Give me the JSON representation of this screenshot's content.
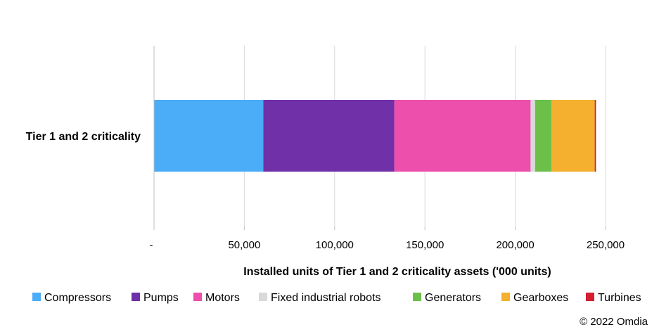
{
  "chart_data": {
    "type": "bar",
    "orientation": "horizontal",
    "stacked": true,
    "categories": [
      "Tier 1 and 2 criticality"
    ],
    "series": [
      {
        "name": "Compressors",
        "values": [
          60500
        ],
        "color": "#4BACF7"
      },
      {
        "name": "Pumps",
        "values": [
          72500
        ],
        "color": "#7030A8"
      },
      {
        "name": "Motors",
        "values": [
          75500
        ],
        "color": "#EC4FAC"
      },
      {
        "name": "Fixed industrial robots",
        "values": [
          2500
        ],
        "color": "#D9D9D9"
      },
      {
        "name": "Generators",
        "values": [
          9000
        ],
        "color": "#6CC04A"
      },
      {
        "name": "Gearboxes",
        "values": [
          24000
        ],
        "color": "#F4B02E"
      },
      {
        "name": "Turbines",
        "values": [
          700
        ],
        "color": "#D32030"
      }
    ],
    "xlabel": "Installed units of Tier 1 and 2 criticality assets ('000 units)",
    "xlim": [
      0,
      250000
    ],
    "xticks": [
      0,
      50000,
      100000,
      150000,
      200000,
      250000
    ],
    "xtick_labels": [
      "-",
      "50,000",
      "100,000",
      "150,000",
      "200,000",
      "250,000"
    ],
    "grid": "vertical",
    "legend_position": "bottom"
  },
  "source": "© 2022 Omdia"
}
